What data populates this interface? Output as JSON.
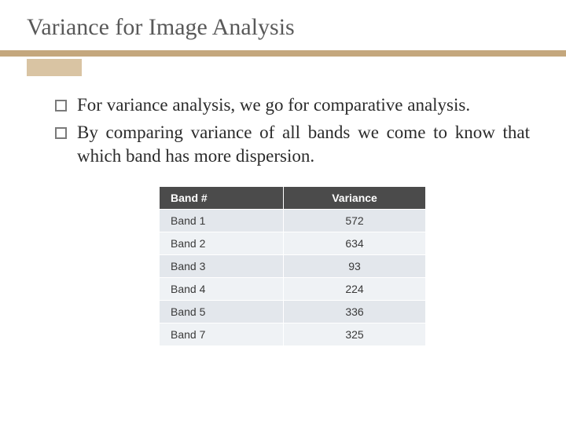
{
  "title": "Variance for Image Analysis",
  "bullets": [
    "For variance analysis, we go for comparative analysis.",
    "By comparing variance of all bands we come to know that which band has more dispersion."
  ],
  "table": {
    "type": "table",
    "columns": [
      "Band #",
      "Variance"
    ],
    "rows": [
      [
        "Band 1",
        "572"
      ],
      [
        "Band 2",
        "634"
      ],
      [
        "Band 3",
        "93"
      ],
      [
        "Band 4",
        "224"
      ],
      [
        "Band 5",
        "336"
      ],
      [
        "Band 7",
        "325"
      ]
    ],
    "header_bg": "#4b4b4b",
    "header_fg": "#ffffff",
    "row_odd_bg": "#e3e7ec",
    "row_even_bg": "#eff2f5",
    "font_family": "Arial",
    "header_fontsize": 14,
    "cell_fontsize": 14,
    "col_align": [
      "left",
      "center"
    ]
  },
  "accent_color": "#c4a77d",
  "accent_tab_color": "#d9c4a3",
  "title_color": "#595959",
  "background_color": "#ffffff"
}
